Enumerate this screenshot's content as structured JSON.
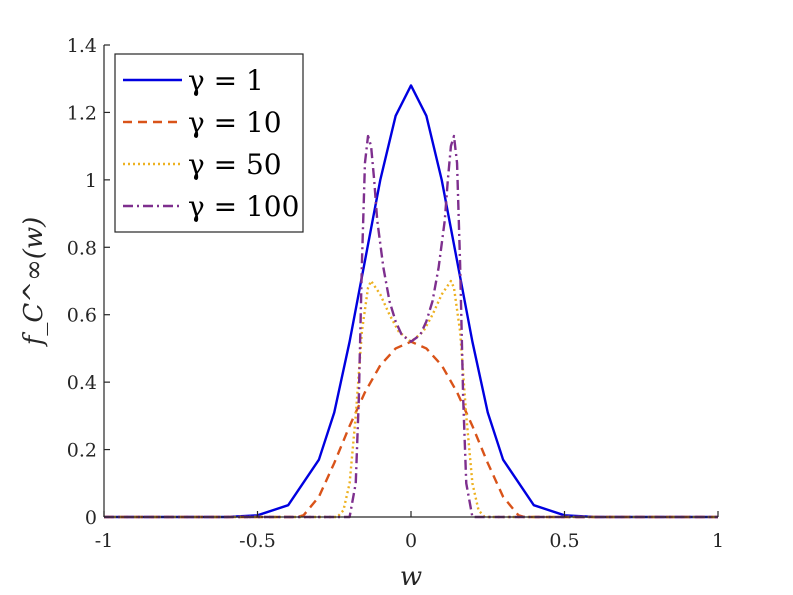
{
  "chart_data": {
    "type": "line",
    "xlabel": "w",
    "ylabel": "f_C^∞(w)",
    "xlim": [
      -1,
      1
    ],
    "ylim": [
      0,
      1.4
    ],
    "xticks": [
      -1,
      -0.5,
      0,
      0.5,
      1
    ],
    "xtick_labels": [
      "-1",
      "-0.5",
      "0",
      "0.5",
      "1"
    ],
    "yticks": [
      0,
      0.2,
      0.4,
      0.6,
      0.8,
      1,
      1.2,
      1.4
    ],
    "ytick_labels": [
      "0",
      "0.2",
      "0.4",
      "0.6",
      "0.8",
      "1",
      "1.2",
      "1.4"
    ],
    "grid": false,
    "legend_position": "top-left",
    "series": [
      {
        "name": "γ = 1",
        "color": "#0000e0",
        "dash": "solid",
        "x": [
          -1,
          -0.6,
          -0.5,
          -0.4,
          -0.3,
          -0.25,
          -0.2,
          -0.15,
          -0.1,
          -0.05,
          0,
          0.05,
          0.1,
          0.15,
          0.2,
          0.25,
          0.3,
          0.4,
          0.5,
          0.6,
          1
        ],
        "y": [
          0,
          0,
          0.005,
          0.035,
          0.17,
          0.31,
          0.52,
          0.76,
          1.0,
          1.19,
          1.28,
          1.19,
          1.0,
          0.76,
          0.52,
          0.31,
          0.17,
          0.035,
          0.005,
          0,
          0
        ]
      },
      {
        "name": "γ = 10",
        "color": "#d95319",
        "dash": "dashed",
        "x": [
          -1,
          -0.37,
          -0.35,
          -0.3,
          -0.25,
          -0.2,
          -0.15,
          -0.1,
          -0.05,
          0,
          0.05,
          0.1,
          0.15,
          0.2,
          0.25,
          0.3,
          0.35,
          0.37,
          1
        ],
        "y": [
          0,
          0,
          0.005,
          0.06,
          0.16,
          0.27,
          0.37,
          0.45,
          0.5,
          0.52,
          0.5,
          0.45,
          0.37,
          0.27,
          0.16,
          0.06,
          0.005,
          0,
          0
        ]
      },
      {
        "name": "γ = 50",
        "color": "#edb120",
        "dash": "dotted",
        "x": [
          -1,
          -0.24,
          -0.22,
          -0.2,
          -0.18,
          -0.16,
          -0.14,
          -0.13,
          -0.1,
          -0.07,
          -0.04,
          0,
          0.04,
          0.07,
          0.1,
          0.13,
          0.14,
          0.16,
          0.18,
          0.2,
          0.22,
          0.24,
          1
        ],
        "y": [
          0,
          0,
          0.02,
          0.1,
          0.3,
          0.55,
          0.68,
          0.7,
          0.66,
          0.6,
          0.55,
          0.52,
          0.55,
          0.6,
          0.66,
          0.7,
          0.68,
          0.55,
          0.3,
          0.1,
          0.02,
          0,
          0
        ]
      },
      {
        "name": "γ = 100",
        "color": "#7e2f8e",
        "dash": "dashdot",
        "x": [
          -1,
          -0.2,
          -0.18,
          -0.17,
          -0.16,
          -0.15,
          -0.14,
          -0.13,
          -0.12,
          -0.11,
          -0.09,
          -0.07,
          -0.05,
          -0.03,
          0,
          0.03,
          0.05,
          0.07,
          0.09,
          0.11,
          0.12,
          0.13,
          0.14,
          0.15,
          0.16,
          0.17,
          0.18,
          0.2,
          1
        ],
        "y": [
          0,
          0,
          0.1,
          0.35,
          0.75,
          1.05,
          1.13,
          1.1,
          1.0,
          0.88,
          0.74,
          0.64,
          0.58,
          0.54,
          0.52,
          0.54,
          0.58,
          0.64,
          0.74,
          0.88,
          1.0,
          1.1,
          1.13,
          1.05,
          0.75,
          0.35,
          0.1,
          0,
          0
        ]
      }
    ]
  }
}
